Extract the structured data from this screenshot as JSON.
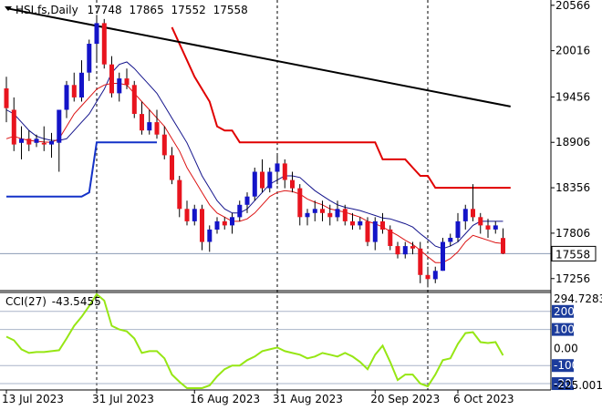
{
  "header": {
    "symbol": "HSI.fs",
    "timeframe": "Daily",
    "ohlc": [
      "17748",
      "17865",
      "17552",
      "17558"
    ]
  },
  "indicator": {
    "name": "CCI(27)",
    "value": "-43.5455"
  },
  "colors": {
    "bull": "#1414c8",
    "bear": "#e8141e",
    "wick": "#000000",
    "ma_fast": "#dc1414",
    "ma_slow": "#14148c",
    "trendline": "#000000",
    "stop_red": "#e00000",
    "stop_blue": "#1432c8",
    "cci": "#96e614",
    "cci_level": "#aab4c8",
    "level_box": "#1c3c9c",
    "price_box": "#ffffff"
  },
  "chart_data": [
    {
      "type": "candlestick",
      "yticks": [
        "20566",
        "20016",
        "19456",
        "18906",
        "18356",
        "17806",
        "17256"
      ],
      "ytick_values": [
        20566,
        20016,
        19456,
        18906,
        18356,
        17806,
        17256
      ],
      "ylim": [
        17110,
        20630
      ],
      "current_price_label": "17558",
      "current_price": 17558,
      "x_labels": [
        {
          "label": "13 Jul 2023",
          "index": 0
        },
        {
          "label": "31 Jul 2023",
          "index": 12
        },
        {
          "label": "16 Aug 2023",
          "index": 25
        },
        {
          "label": "31 Aug 2023",
          "index": 36
        },
        {
          "label": "20 Sep 2023",
          "index": 49
        },
        {
          "label": "6 Oct 2023",
          "index": 60
        }
      ],
      "vlines": [
        12,
        36,
        56
      ],
      "ohlc": [
        [
          19560,
          19700,
          19150,
          19320
        ],
        [
          19300,
          19450,
          18800,
          18880
        ],
        [
          18900,
          19100,
          18700,
          18950
        ],
        [
          18950,
          19050,
          18800,
          18880
        ],
        [
          18900,
          19000,
          18850,
          18950
        ],
        [
          18900,
          19100,
          18800,
          18880
        ],
        [
          18880,
          19020,
          18720,
          18920
        ],
        [
          18900,
          19300,
          18550,
          19300
        ],
        [
          19300,
          19650,
          19200,
          19600
        ],
        [
          19600,
          19750,
          19400,
          19450
        ],
        [
          19450,
          19900,
          19400,
          19750
        ],
        [
          19750,
          20150,
          19650,
          20100
        ],
        [
          20100,
          20450,
          19900,
          20350
        ],
        [
          20350,
          20400,
          19800,
          19850
        ],
        [
          19850,
          19950,
          19450,
          19500
        ],
        [
          19500,
          19750,
          19400,
          19680
        ],
        [
          19680,
          19800,
          19550,
          19600
        ],
        [
          19600,
          19650,
          19200,
          19250
        ],
        [
          19250,
          19400,
          19000,
          19050
        ],
        [
          19050,
          19300,
          19000,
          19150
        ],
        [
          19150,
          19300,
          18950,
          19000
        ],
        [
          19000,
          19100,
          18700,
          18750
        ],
        [
          18750,
          18850,
          18400,
          18450
        ],
        [
          18450,
          18500,
          18000,
          18100
        ],
        [
          18100,
          18200,
          17900,
          17950
        ],
        [
          17950,
          18150,
          17900,
          18100
        ],
        [
          18100,
          18150,
          17600,
          17700
        ],
        [
          17700,
          17900,
          17580,
          17850
        ],
        [
          17850,
          18000,
          17800,
          17950
        ],
        [
          17950,
          18000,
          17850,
          17900
        ],
        [
          17900,
          18050,
          17800,
          18000
        ],
        [
          18000,
          18200,
          17950,
          18150
        ],
        [
          18150,
          18300,
          18050,
          18250
        ],
        [
          18250,
          18600,
          18200,
          18550
        ],
        [
          18550,
          18700,
          18300,
          18350
        ],
        [
          18350,
          18600,
          18300,
          18550
        ],
        [
          18550,
          18750,
          18400,
          18650
        ],
        [
          18650,
          18700,
          18350,
          18450
        ],
        [
          18450,
          18550,
          18300,
          18350
        ],
        [
          18350,
          18400,
          17900,
          18000
        ],
        [
          18000,
          18100,
          17900,
          18050
        ],
        [
          18050,
          18200,
          17950,
          18100
        ],
        [
          18100,
          18200,
          17950,
          18050
        ],
        [
          18050,
          18150,
          17900,
          18000
        ],
        [
          18000,
          18200,
          17950,
          18100
        ],
        [
          18100,
          18150,
          17900,
          17950
        ],
        [
          17950,
          18050,
          17850,
          17900
        ],
        [
          17900,
          18000,
          17850,
          17950
        ],
        [
          17950,
          18000,
          17650,
          17700
        ],
        [
          17700,
          18000,
          17600,
          17950
        ],
        [
          17950,
          18050,
          17800,
          17850
        ],
        [
          17850,
          17900,
          17600,
          17650
        ],
        [
          17650,
          17700,
          17500,
          17550
        ],
        [
          17550,
          17700,
          17500,
          17650
        ],
        [
          17650,
          17700,
          17550,
          17620
        ],
        [
          17620,
          17700,
          17200,
          17300
        ],
        [
          17300,
          17400,
          17150,
          17250
        ],
        [
          17250,
          17400,
          17200,
          17350
        ],
        [
          17350,
          17750,
          17350,
          17700
        ],
        [
          17700,
          17800,
          17650,
          17750
        ],
        [
          17750,
          18050,
          17700,
          17950
        ],
        [
          17950,
          18150,
          17850,
          18100
        ],
        [
          18100,
          18400,
          17950,
          18000
        ],
        [
          18000,
          18050,
          17800,
          17900
        ],
        [
          17900,
          17980,
          17750,
          17850
        ],
        [
          17850,
          17950,
          17800,
          17900
        ],
        [
          17748,
          17865,
          17552,
          17558
        ]
      ],
      "ma_fast": [
        18950,
        18980,
        18950,
        18930,
        18920,
        18910,
        18905,
        18950,
        19100,
        19250,
        19350,
        19450,
        19550,
        19600,
        19620,
        19620,
        19600,
        19500,
        19400,
        19300,
        19200,
        19100,
        18950,
        18800,
        18600,
        18450,
        18300,
        18150,
        18050,
        18000,
        17950,
        17950,
        17980,
        18050,
        18150,
        18250,
        18300,
        18320,
        18310,
        18280,
        18220,
        18180,
        18150,
        18100,
        18080,
        18060,
        18030,
        18000,
        17950,
        17920,
        17880,
        17830,
        17780,
        17720,
        17670,
        17600,
        17520,
        17450,
        17450,
        17500,
        17580,
        17700,
        17780,
        17750,
        17720,
        17690,
        17680
      ],
      "ma_slow": [
        19300,
        19250,
        19150,
        19050,
        18980,
        18950,
        18930,
        18930,
        18950,
        19050,
        19150,
        19250,
        19400,
        19550,
        19750,
        19850,
        19880,
        19800,
        19700,
        19600,
        19500,
        19350,
        19200,
        19050,
        18900,
        18700,
        18500,
        18350,
        18200,
        18100,
        18050,
        18050,
        18100,
        18200,
        18300,
        18400,
        18450,
        18500,
        18500,
        18480,
        18400,
        18320,
        18260,
        18200,
        18150,
        18120,
        18100,
        18080,
        18050,
        18020,
        17990,
        17980,
        17950,
        17920,
        17880,
        17800,
        17730,
        17650,
        17620,
        17650,
        17700,
        17800,
        17900,
        17950,
        17950,
        17950,
        17950
      ],
      "trendline": [
        [
          0,
          20530
        ],
        [
          67,
          19340
        ]
      ],
      "stop_red": [
        [
          22,
          20300
        ],
        [
          25,
          19700
        ],
        [
          27,
          19400
        ],
        [
          28,
          19100
        ],
        [
          29,
          19050
        ],
        [
          30,
          19050
        ],
        [
          31,
          18906
        ],
        [
          32,
          18906
        ],
        [
          33,
          18906
        ],
        [
          48,
          18906
        ],
        [
          49,
          18906
        ],
        [
          50,
          18700
        ],
        [
          53,
          18700
        ],
        [
          54,
          18600
        ],
        [
          55,
          18500
        ],
        [
          56,
          18500
        ],
        [
          57,
          18356
        ],
        [
          67,
          18356
        ]
      ],
      "stop_blue": [
        [
          0,
          18250
        ],
        [
          10,
          18250
        ],
        [
          11,
          18300
        ],
        [
          12,
          18906
        ],
        [
          20,
          18906
        ]
      ]
    },
    {
      "type": "line",
      "title": "CCI(27)",
      "value_label": "-43.5455",
      "yticks_right": [
        {
          "label": "294.7283",
          "value": 294.7283,
          "boxed": false
        },
        {
          "label": "200",
          "value": 200,
          "boxed": true
        },
        {
          "label": "100",
          "value": 100,
          "boxed": true
        },
        {
          "label": "0.00",
          "value": 0,
          "boxed": false
        },
        {
          "label": "-100",
          "value": -100,
          "boxed": true
        },
        {
          "label": "-200",
          "value": -200,
          "boxed": true
        },
        {
          "label": "-225.0015",
          "value": -225.0015,
          "boxed": false
        }
      ],
      "levels": [
        200,
        100,
        -100,
        -200
      ],
      "ylim": [
        -225.0015,
        294.7283
      ],
      "values": [
        60,
        40,
        -10,
        -30,
        -25,
        -25,
        -20,
        -15,
        50,
        120,
        170,
        230,
        295,
        260,
        120,
        100,
        90,
        50,
        -30,
        -20,
        -20,
        -60,
        -150,
        -190,
        -225,
        -225,
        -225,
        -210,
        -160,
        -120,
        -100,
        -100,
        -70,
        -50,
        -20,
        -10,
        0,
        -20,
        -30,
        -40,
        -60,
        -50,
        -30,
        -40,
        -50,
        -30,
        -50,
        -80,
        -120,
        -40,
        10,
        -80,
        -180,
        -150,
        -150,
        -200,
        -215,
        -150,
        -70,
        -60,
        20,
        80,
        85,
        30,
        25,
        30,
        -43.5455
      ]
    }
  ]
}
